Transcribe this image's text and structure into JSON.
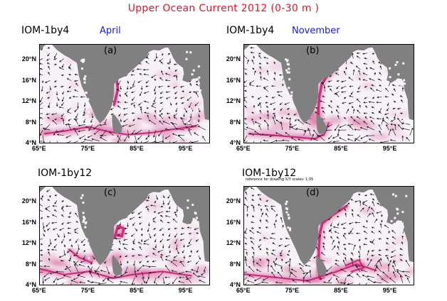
{
  "figure": {
    "title": "Upper Ocean Current 2012 (0-30 m )",
    "colors": {
      "title": "#e0162b",
      "month": "#1a1ad6",
      "land": "#808080",
      "ocean": "#f7f2f7",
      "current": "#c8186e"
    },
    "note": "reference for drawing X/Y scales: 1.05",
    "panels": [
      {
        "id": "a",
        "label": "(a)",
        "model": "IOM-1by4",
        "month": "April"
      },
      {
        "id": "b",
        "label": "(b)",
        "model": "IOM-1by4",
        "month": "November"
      },
      {
        "id": "c",
        "label": "(c)",
        "model": "IOM-1by12",
        "month": ""
      },
      {
        "id": "d",
        "label": "(d)",
        "model": "IOM-1by12",
        "month": ""
      }
    ],
    "y_ticks": [
      "20°N",
      "16°N",
      "12°N",
      "8°N",
      "4°N"
    ],
    "x_ticks": [
      "65°E",
      "75°E",
      "85°E",
      "95°E"
    ]
  }
}
